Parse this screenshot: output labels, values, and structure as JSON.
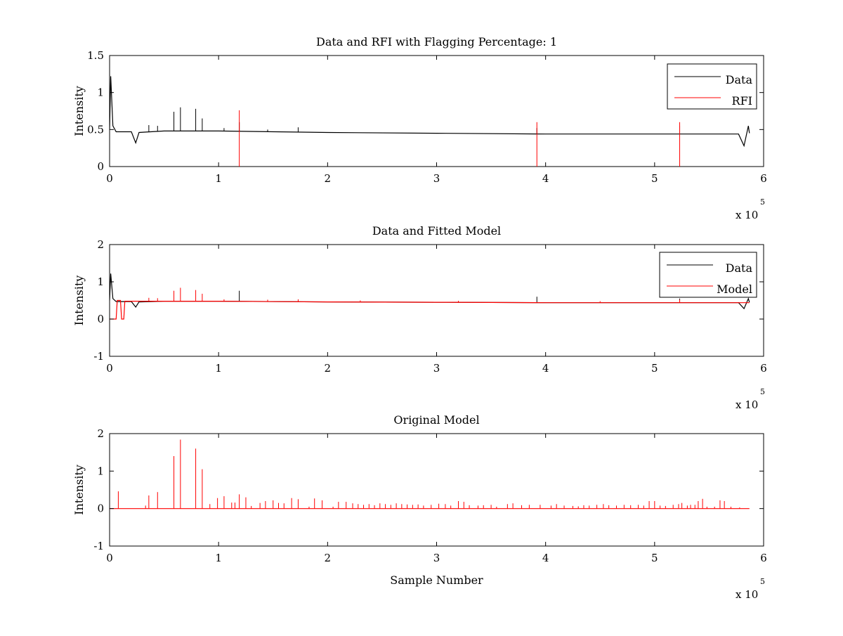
{
  "chart_data": [
    {
      "type": "line",
      "title": "Data and RFI with Flagging Percentage: 1",
      "xlabel": "",
      "ylabel": "Intensity",
      "xlim": [
        0,
        6
      ],
      "ylim": [
        0,
        1.5
      ],
      "xticks": [
        "0",
        "1",
        "2",
        "3",
        "4",
        "5",
        "6"
      ],
      "yticks": [
        "0",
        "0.5",
        "1",
        "1.5"
      ],
      "x_multiplier": {
        "base": "x 10",
        "exponent": "5"
      },
      "legend": {
        "position": "top-right",
        "entries": [
          "Data",
          "RFI"
        ]
      },
      "grid": false,
      "series": [
        {
          "name": "Data",
          "color": "#000000",
          "baseline": [
            [
              0.0,
              0.5
            ],
            [
              0.01,
              1.22
            ],
            [
              0.03,
              0.55
            ],
            [
              0.06,
              0.47
            ],
            [
              0.2,
              0.47
            ],
            [
              0.24,
              0.32
            ],
            [
              0.27,
              0.46
            ],
            [
              0.5,
              0.48
            ],
            [
              1.0,
              0.48
            ],
            [
              2.0,
              0.46
            ],
            [
              3.0,
              0.45
            ],
            [
              4.0,
              0.44
            ],
            [
              5.0,
              0.44
            ],
            [
              5.77,
              0.44
            ],
            [
              5.82,
              0.28
            ],
            [
              5.86,
              0.55
            ],
            [
              5.87,
              0.45
            ]
          ],
          "spikes": [
            [
              0.59,
              0.74
            ],
            [
              0.65,
              0.8
            ],
            [
              0.79,
              0.78
            ],
            [
              0.85,
              0.65
            ],
            [
              0.36,
              0.56
            ],
            [
              0.44,
              0.55
            ],
            [
              1.05,
              0.52
            ],
            [
              1.19,
              0.6
            ],
            [
              1.45,
              0.5
            ],
            [
              1.73,
              0.53
            ],
            [
              3.92,
              0.52
            ],
            [
              5.23,
              0.55
            ]
          ]
        },
        {
          "name": "RFI",
          "color": "#ff0000",
          "spikes": [
            [
              1.19,
              0.76
            ],
            [
              3.92,
              0.6
            ],
            [
              5.23,
              0.6
            ]
          ]
        }
      ]
    },
    {
      "type": "line",
      "title": "Data and Fitted Model",
      "xlabel": "",
      "ylabel": "Intensity",
      "xlim": [
        0,
        6
      ],
      "ylim": [
        -1,
        2
      ],
      "xticks": [
        "0",
        "1",
        "2",
        "3",
        "4",
        "5",
        "6"
      ],
      "yticks": [
        "-1",
        "0",
        "1",
        "2"
      ],
      "x_multiplier": {
        "base": "x 10",
        "exponent": "5"
      },
      "legend": {
        "position": "top-right",
        "entries": [
          "Data",
          "Model"
        ]
      },
      "grid": false,
      "series": [
        {
          "name": "Data",
          "color": "#000000",
          "baseline": [
            [
              0.0,
              0.5
            ],
            [
              0.01,
              1.22
            ],
            [
              0.03,
              0.55
            ],
            [
              0.06,
              0.47
            ],
            [
              0.2,
              0.47
            ],
            [
              0.24,
              0.32
            ],
            [
              0.27,
              0.46
            ],
            [
              0.5,
              0.48
            ],
            [
              1.0,
              0.48
            ],
            [
              2.0,
              0.46
            ],
            [
              3.0,
              0.45
            ],
            [
              4.0,
              0.44
            ],
            [
              5.0,
              0.44
            ],
            [
              5.77,
              0.44
            ],
            [
              5.82,
              0.28
            ],
            [
              5.86,
              0.55
            ],
            [
              5.87,
              0.45
            ]
          ],
          "spikes": [
            [
              1.19,
              0.76
            ],
            [
              3.92,
              0.6
            ],
            [
              5.23,
              0.55
            ]
          ]
        },
        {
          "name": "Model",
          "color": "#ff0000",
          "baseline": [
            [
              0.0,
              0.0
            ],
            [
              0.06,
              0.0
            ],
            [
              0.07,
              0.5
            ],
            [
              0.1,
              0.5
            ],
            [
              0.11,
              0.0
            ],
            [
              0.13,
              0.0
            ],
            [
              0.14,
              0.48
            ],
            [
              1.0,
              0.48
            ],
            [
              2.0,
              0.46
            ],
            [
              3.0,
              0.45
            ],
            [
              4.0,
              0.44
            ],
            [
              5.0,
              0.44
            ],
            [
              5.87,
              0.44
            ]
          ],
          "spikes": [
            [
              0.59,
              0.76
            ],
            [
              0.65,
              0.84
            ],
            [
              0.79,
              0.78
            ],
            [
              0.85,
              0.68
            ],
            [
              0.36,
              0.57
            ],
            [
              0.44,
              0.56
            ],
            [
              1.05,
              0.53
            ],
            [
              1.45,
              0.52
            ],
            [
              1.73,
              0.53
            ],
            [
              2.3,
              0.5
            ],
            [
              3.2,
              0.49
            ],
            [
              4.5,
              0.48
            ],
            [
              5.23,
              0.52
            ]
          ]
        }
      ]
    },
    {
      "type": "line",
      "title": "Original Model",
      "xlabel": "Sample Number",
      "ylabel": "Intensity",
      "xlim": [
        0,
        6
      ],
      "ylim": [
        -1,
        2
      ],
      "xticks": [
        "0",
        "1",
        "2",
        "3",
        "4",
        "5",
        "6"
      ],
      "yticks": [
        "-1",
        "0",
        "1",
        "2"
      ],
      "x_multiplier": {
        "base": "x 10",
        "exponent": "5"
      },
      "grid": false,
      "series": [
        {
          "color": "#ff0000",
          "baseline": [
            [
              0.0,
              0.0
            ],
            [
              5.87,
              0.0
            ]
          ],
          "spikes": [
            [
              0.08,
              0.46
            ],
            [
              0.33,
              0.08
            ],
            [
              0.36,
              0.35
            ],
            [
              0.44,
              0.44
            ],
            [
              0.59,
              1.4
            ],
            [
              0.65,
              1.84
            ],
            [
              0.79,
              1.6
            ],
            [
              0.85,
              1.05
            ],
            [
              0.92,
              0.12
            ],
            [
              0.99,
              0.28
            ],
            [
              1.05,
              0.33
            ],
            [
              1.12,
              0.16
            ],
            [
              1.15,
              0.16
            ],
            [
              1.19,
              0.38
            ],
            [
              1.25,
              0.3
            ],
            [
              1.3,
              0.07
            ],
            [
              1.38,
              0.15
            ],
            [
              1.43,
              0.2
            ],
            [
              1.5,
              0.22
            ],
            [
              1.55,
              0.15
            ],
            [
              1.6,
              0.14
            ],
            [
              1.67,
              0.28
            ],
            [
              1.73,
              0.25
            ],
            [
              1.83,
              0.05
            ],
            [
              1.88,
              0.27
            ],
            [
              1.95,
              0.22
            ],
            [
              2.05,
              0.05
            ],
            [
              2.1,
              0.18
            ],
            [
              2.17,
              0.18
            ],
            [
              2.23,
              0.14
            ],
            [
              2.28,
              0.12
            ],
            [
              2.33,
              0.1
            ],
            [
              2.38,
              0.12
            ],
            [
              2.43,
              0.09
            ],
            [
              2.48,
              0.14
            ],
            [
              2.53,
              0.12
            ],
            [
              2.58,
              0.1
            ],
            [
              2.63,
              0.14
            ],
            [
              2.68,
              0.12
            ],
            [
              2.73,
              0.11
            ],
            [
              2.78,
              0.1
            ],
            [
              2.83,
              0.11
            ],
            [
              2.88,
              0.08
            ],
            [
              2.95,
              0.1
            ],
            [
              3.02,
              0.13
            ],
            [
              3.08,
              0.12
            ],
            [
              3.13,
              0.08
            ],
            [
              3.2,
              0.2
            ],
            [
              3.25,
              0.18
            ],
            [
              3.3,
              0.09
            ],
            [
              3.38,
              0.08
            ],
            [
              3.43,
              0.09
            ],
            [
              3.5,
              0.1
            ],
            [
              3.55,
              0.05
            ],
            [
              3.65,
              0.12
            ],
            [
              3.7,
              0.14
            ],
            [
              3.78,
              0.09
            ],
            [
              3.85,
              0.1
            ],
            [
              3.95,
              0.1
            ],
            [
              4.05,
              0.08
            ],
            [
              4.1,
              0.12
            ],
            [
              4.17,
              0.08
            ],
            [
              4.25,
              0.07
            ],
            [
              4.3,
              0.06
            ],
            [
              4.35,
              0.09
            ],
            [
              4.4,
              0.08
            ],
            [
              4.47,
              0.1
            ],
            [
              4.53,
              0.12
            ],
            [
              4.58,
              0.09
            ],
            [
              4.65,
              0.08
            ],
            [
              4.72,
              0.1
            ],
            [
              4.78,
              0.09
            ],
            [
              4.85,
              0.1
            ],
            [
              4.9,
              0.08
            ],
            [
              4.95,
              0.2
            ],
            [
              5.0,
              0.2
            ],
            [
              5.05,
              0.08
            ],
            [
              5.1,
              0.07
            ],
            [
              5.17,
              0.1
            ],
            [
              5.22,
              0.12
            ],
            [
              5.25,
              0.15
            ],
            [
              5.3,
              0.08
            ],
            [
              5.33,
              0.1
            ],
            [
              5.37,
              0.1
            ],
            [
              5.4,
              0.2
            ],
            [
              5.44,
              0.26
            ],
            [
              5.48,
              0.05
            ],
            [
              5.55,
              0.05
            ],
            [
              5.6,
              0.22
            ],
            [
              5.64,
              0.2
            ],
            [
              5.7,
              0.05
            ],
            [
              5.78,
              0.03
            ]
          ]
        }
      ]
    }
  ]
}
